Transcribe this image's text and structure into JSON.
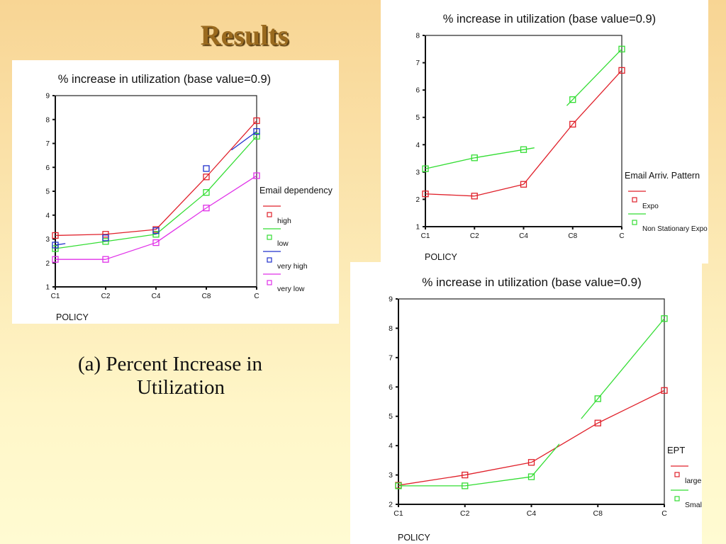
{
  "slide": {
    "title": "Results",
    "caption_line1": "(a) Percent Increase in",
    "caption_line2": "Utilization"
  },
  "colors": {
    "red": "#e0202a",
    "green": "#33dd33",
    "blue": "#2030cc",
    "magenta": "#e030e8",
    "title_brown": "#9a6a1e"
  },
  "chart_data": [
    {
      "type": "line",
      "title": "% increase in utilization (base value=0.9)",
      "xlabel": "POLICY",
      "ylabel": "",
      "categories": [
        "C1",
        "C2",
        "C4",
        "C8",
        "C"
      ],
      "ylim": [
        1,
        9
      ],
      "yticks": [
        "1",
        "2",
        "3",
        "4",
        "5",
        "6",
        "7",
        "8",
        "9"
      ],
      "grid": false,
      "legend": {
        "title": "Email dependency",
        "position": "right"
      },
      "series": [
        {
          "name": "high",
          "color": "#e0202a",
          "values": [
            3.15,
            3.2,
            3.4,
            5.6,
            7.95
          ]
        },
        {
          "name": "low",
          "color": "#33dd33",
          "values": [
            2.6,
            2.9,
            3.2,
            4.95,
            7.3
          ]
        },
        {
          "name": "very high",
          "color": "#2030cc",
          "values": [
            2.75,
            3.05,
            3.35,
            5.95,
            7.5
          ]
        },
        {
          "name": "very low",
          "color": "#e030e8",
          "values": [
            2.15,
            2.15,
            2.85,
            4.3,
            5.65
          ]
        }
      ]
    },
    {
      "type": "line",
      "title": "% increase in utilization (base value=0.9)",
      "xlabel": "POLICY",
      "ylabel": "",
      "categories": [
        "C1",
        "C2",
        "C4",
        "C8",
        "C"
      ],
      "ylim": [
        1,
        8
      ],
      "yticks": [
        "1",
        "2",
        "3",
        "4",
        "5",
        "6",
        "7",
        "8"
      ],
      "grid": false,
      "legend": {
        "title": "Email Arriv. Pattern",
        "position": "right"
      },
      "series": [
        {
          "name": "Expo",
          "color": "#e0202a",
          "values": [
            2.2,
            2.12,
            2.55,
            4.75,
            6.72
          ]
        },
        {
          "name": "Non Stationary Expo",
          "color": "#33dd33",
          "values": [
            3.12,
            3.52,
            3.82,
            5.65,
            7.5
          ]
        }
      ]
    },
    {
      "type": "line",
      "title": "% increase in utilization (base value=0.9)",
      "xlabel": "POLICY",
      "ylabel": "",
      "categories": [
        "C1",
        "C2",
        "C4",
        "C8",
        "C"
      ],
      "ylim": [
        2,
        9
      ],
      "yticks": [
        "2",
        "3",
        "4",
        "5",
        "6",
        "7",
        "8",
        "9"
      ],
      "grid": false,
      "legend": {
        "title": "EPT",
        "position": "right"
      },
      "series": [
        {
          "name": "large",
          "color": "#e0202a",
          "values": [
            2.65,
            3.0,
            3.43,
            4.77,
            5.88
          ]
        },
        {
          "name": "Small",
          "color": "#33dd33",
          "values": [
            2.63,
            2.63,
            2.94,
            5.6,
            8.33
          ]
        }
      ]
    }
  ]
}
